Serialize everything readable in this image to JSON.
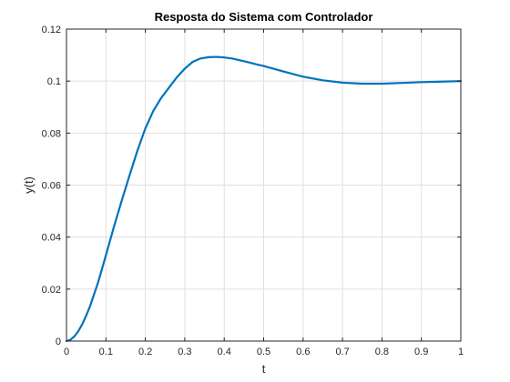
{
  "chart_data": {
    "type": "line",
    "title": "Resposta do Sistema com Controlador",
    "xlabel": "t",
    "ylabel": "y(t)",
    "xlim": [
      0,
      1
    ],
    "ylim": [
      0,
      0.12
    ],
    "xticks": [
      0,
      0.1,
      0.2,
      0.3,
      0.4,
      0.5,
      0.6,
      0.7,
      0.8,
      0.9,
      1
    ],
    "xtick_labels": [
      "0",
      "0.1",
      "0.2",
      "0.3",
      "0.4",
      "0.5",
      "0.6",
      "0.7",
      "0.8",
      "0.9",
      "1"
    ],
    "yticks": [
      0,
      0.02,
      0.04,
      0.06,
      0.08,
      0.1,
      0.12
    ],
    "ytick_labels": [
      "0",
      "0.02",
      "0.04",
      "0.06",
      "0.08",
      "0.1",
      "0.12"
    ],
    "grid": true,
    "legend": "none",
    "colors": {
      "line": "#0072BD",
      "axis": "#262626",
      "grid": "#dfdfdf"
    },
    "series": [
      {
        "x": [
          0,
          0.01,
          0.02,
          0.03,
          0.04,
          0.05,
          0.06,
          0.08,
          0.1,
          0.12,
          0.14,
          0.16,
          0.18,
          0.2,
          0.22,
          0.24,
          0.26,
          0.28,
          0.3,
          0.32,
          0.34,
          0.36,
          0.38,
          0.4,
          0.42,
          0.44,
          0.46,
          0.48,
          0.5,
          0.55,
          0.6,
          0.65,
          0.7,
          0.75,
          0.8,
          0.85,
          0.9,
          0.95,
          1.0
        ],
        "y": [
          0,
          0.0005,
          0.0018,
          0.0038,
          0.0065,
          0.0098,
          0.0135,
          0.0225,
          0.033,
          0.0438,
          0.054,
          0.0638,
          0.0733,
          0.0818,
          0.0885,
          0.0935,
          0.0975,
          0.1015,
          0.1048,
          0.1074,
          0.1087,
          0.1092,
          0.1093,
          0.1091,
          0.1087,
          0.108,
          0.1073,
          0.1065,
          0.1058,
          0.1037,
          0.1017,
          0.1003,
          0.0994,
          0.099,
          0.099,
          0.0993,
          0.0996,
          0.0998,
          0.1
        ]
      }
    ]
  }
}
